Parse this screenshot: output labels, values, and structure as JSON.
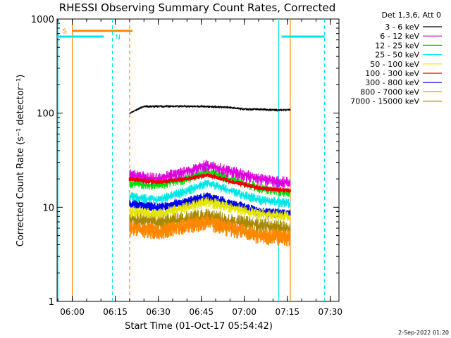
{
  "chart_data": {
    "type": "line",
    "title": "RHESSI Observing Summary Count Rates, Corrected",
    "xlabel": "Start Time (01-Oct-17 05:54:42)",
    "ylabel": "Corrected Count Rate (s⁻¹ detector⁻¹)",
    "ylim": [
      1,
      1000
    ],
    "ylog": true,
    "xlim": [
      "05:54:42",
      "07:33:00"
    ],
    "x_ticks": [
      "06:00",
      "06:15",
      "06:30",
      "06:45",
      "07:00",
      "07:15",
      "07:30"
    ],
    "y_ticks": [
      "1",
      "10",
      "100",
      "1000"
    ],
    "legend_title": "Det 1,3,6, Att 0",
    "legend_position": "top-right",
    "series": [
      {
        "name": "3 - 6 keV",
        "color": "#000000",
        "x": [
          "06:20",
          "06:25",
          "06:35",
          "06:45",
          "06:55",
          "07:00",
          "07:05",
          "07:10",
          "07:16"
        ],
        "values": [
          100,
          118,
          118,
          118,
          115,
          110,
          110,
          108,
          108
        ]
      },
      {
        "name": "6 - 12 keV",
        "color": "#dd00dd",
        "x": [
          "06:20",
          "06:30",
          "06:40",
          "06:47",
          "06:55",
          "07:05",
          "07:16"
        ],
        "values": [
          22,
          20,
          24,
          28,
          24,
          20,
          18
        ]
      },
      {
        "name": "12 - 25 keV",
        "color": "#00dd00",
        "x": [
          "06:20",
          "06:30",
          "06:40",
          "06:47",
          "06:55",
          "07:05",
          "07:16"
        ],
        "values": [
          18,
          17,
          20,
          24,
          20,
          16,
          14
        ]
      },
      {
        "name": "25 - 50 keV",
        "color": "#00e5e5",
        "x": [
          "06:20",
          "06:30",
          "06:40",
          "06:47",
          "06:55",
          "07:05",
          "07:16"
        ],
        "values": [
          13,
          12,
          15,
          18,
          15,
          12,
          11
        ]
      },
      {
        "name": "50 - 100 keV",
        "color": "#e5e500",
        "x": [
          "06:20",
          "06:30",
          "06:40",
          "06:47",
          "06:55",
          "07:05",
          "07:16"
        ],
        "values": [
          9,
          8.5,
          10,
          11.5,
          10,
          8.5,
          8
        ]
      },
      {
        "name": "100 - 300 keV",
        "color": "#ee0000",
        "x": [
          "06:20",
          "06:30",
          "06:40",
          "06:47",
          "06:55",
          "07:05",
          "07:16"
        ],
        "values": [
          20,
          18.5,
          20,
          22,
          19,
          16,
          15
        ]
      },
      {
        "name": "300 - 800 keV",
        "color": "#0000ee",
        "x": [
          "06:20",
          "06:30",
          "06:40",
          "06:47",
          "06:55",
          "07:05",
          "07:16"
        ],
        "values": [
          11,
          10,
          11.5,
          13,
          11,
          9,
          8.5
        ]
      },
      {
        "name": "800 - 7000 keV",
        "color": "#ff8800",
        "x": [
          "06:20",
          "06:30",
          "06:40",
          "06:47",
          "06:55",
          "07:05",
          "07:16"
        ],
        "values": [
          6,
          5.5,
          6.5,
          7,
          6,
          5,
          4.8
        ]
      },
      {
        "name": "7000 - 15000 keV",
        "color": "#aa8800",
        "x": [
          "06:20",
          "06:30",
          "06:40",
          "06:47",
          "06:55",
          "07:05",
          "07:16"
        ],
        "values": [
          7.5,
          7,
          7.5,
          8,
          7,
          6.5,
          6
        ]
      }
    ],
    "annotations": {
      "saa_label": "S",
      "night_label": "N",
      "saa_color": "#ff8800",
      "night_color": "#00e5e5",
      "saa_bar": {
        "x_start": "06:00",
        "x_end": "06:21",
        "y": 750
      },
      "night_bars": [
        {
          "x_start": "05:54",
          "x_end": "06:11",
          "y": 650
        },
        {
          "x_start": "07:13",
          "x_end": "07:28",
          "y": 650
        }
      ],
      "saa_lines_solid": [
        "06:00",
        "07:16"
      ],
      "saa_lines_dashed": [
        "06:20"
      ],
      "night_lines_solid": [
        "05:55",
        "07:12"
      ],
      "night_lines_dashed": [
        "06:14",
        "07:28"
      ]
    }
  },
  "footer": {
    "timestamp": "2-Sep-2022 01:20"
  }
}
